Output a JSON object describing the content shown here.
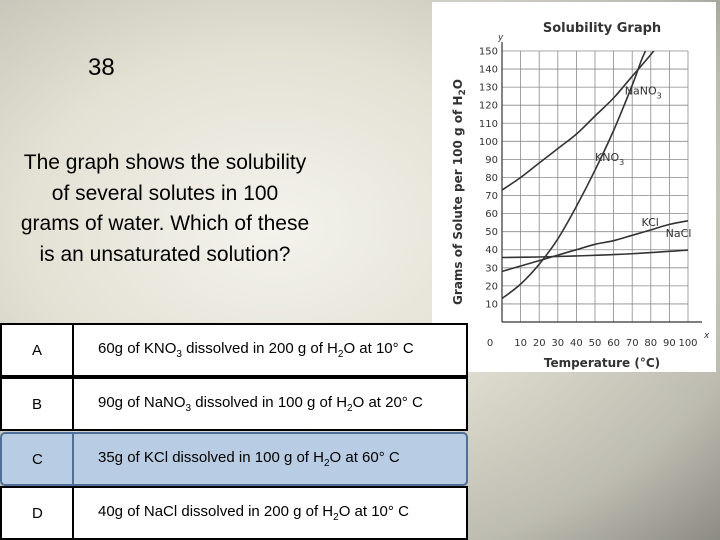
{
  "slide": {
    "number": "38"
  },
  "question": {
    "text": "The graph shows the solubility of several solutes in 100 grams of water. Which of these is an unsaturated solution?"
  },
  "answers": [
    {
      "letter": "A",
      "segments": [
        "60g of KNO",
        "3",
        " dissolved in 200 g of H",
        "2",
        "O at 10° C"
      ],
      "selected": false
    },
    {
      "letter": "B",
      "segments": [
        "90g of NaNO",
        "3",
        " dissolved in 100 g of H",
        "2",
        "O at 20° C"
      ],
      "selected": false
    },
    {
      "letter": "C",
      "segments": [
        "35g of KCl dissolved in 100 g of H",
        "2",
        "O at 60° C"
      ],
      "selected": true
    },
    {
      "letter": "D",
      "segments": [
        "40g of NaCl dissolved in 200 g of H",
        "2",
        "O at 10° C"
      ],
      "selected": false
    }
  ],
  "colors": {
    "selected_fill": "#b8cce4",
    "selected_border": "#4f6f96",
    "curve": "#333333",
    "grid": "#8a8a8a"
  },
  "chart_data": {
    "type": "line",
    "title": "Solubility Graph",
    "xlabel": "Temperature (°C)",
    "ylabel": "Grams of Solute per 100 g of H2O",
    "x_axis_letter": "x",
    "y_axis_letter": "y",
    "xlim": [
      0,
      100
    ],
    "ylim": [
      0,
      150
    ],
    "xticks": [
      0,
      10,
      20,
      30,
      40,
      50,
      60,
      70,
      80,
      90,
      100
    ],
    "yticks": [
      10,
      20,
      30,
      40,
      50,
      60,
      70,
      80,
      90,
      100,
      110,
      120,
      130,
      140,
      150
    ],
    "grid": true,
    "series": [
      {
        "name": "NaNO3",
        "label_base": "NaNO",
        "label_sub": "3",
        "points": [
          [
            0,
            73
          ],
          [
            10,
            80
          ],
          [
            20,
            88
          ],
          [
            30,
            96
          ],
          [
            40,
            104
          ],
          [
            50,
            114
          ],
          [
            60,
            124
          ],
          [
            70,
            136
          ],
          [
            80,
            148
          ],
          [
            83,
            152
          ]
        ]
      },
      {
        "name": "KNO3",
        "label_base": "KNO",
        "label_sub": "3",
        "points": [
          [
            0,
            13
          ],
          [
            10,
            21
          ],
          [
            20,
            32
          ],
          [
            30,
            46
          ],
          [
            40,
            64
          ],
          [
            50,
            84
          ],
          [
            60,
            106
          ],
          [
            70,
            131
          ],
          [
            75,
            145
          ],
          [
            78,
            152
          ]
        ]
      },
      {
        "name": "KCl",
        "label_base": "KCl",
        "label_sub": "",
        "points": [
          [
            0,
            28
          ],
          [
            10,
            31
          ],
          [
            20,
            34
          ],
          [
            30,
            37
          ],
          [
            40,
            40
          ],
          [
            50,
            43
          ],
          [
            60,
            45
          ],
          [
            70,
            48
          ],
          [
            80,
            51
          ],
          [
            90,
            54
          ],
          [
            100,
            56
          ]
        ]
      },
      {
        "name": "NaCl",
        "label_base": "NaCl",
        "label_sub": "",
        "points": [
          [
            0,
            35.7
          ],
          [
            20,
            36
          ],
          [
            40,
            36.6
          ],
          [
            60,
            37.3
          ],
          [
            80,
            38.4
          ],
          [
            100,
            39.8
          ]
        ]
      }
    ]
  }
}
